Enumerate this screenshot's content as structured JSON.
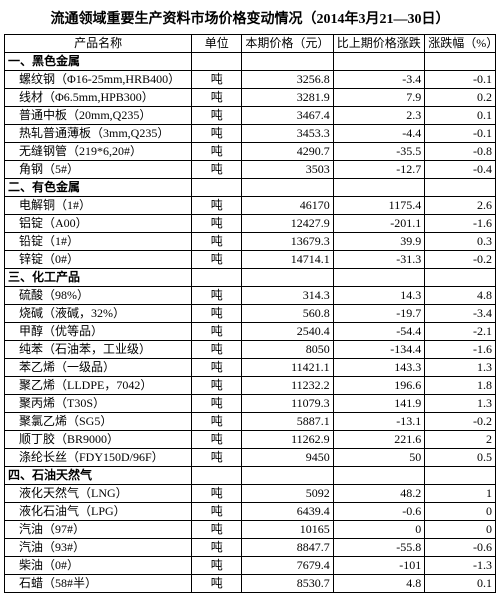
{
  "title": "流通领域重要生产资料市场价格变动情况（2014年3月21—30日）",
  "headers": {
    "name": "产品名称",
    "unit": "单位",
    "price": "本期价格（元）",
    "change": "比上期价格涨跌（元）",
    "pct": "涨跌幅（%）"
  },
  "sections": [
    {
      "label": "一、黑色金属",
      "rows": [
        {
          "name": "螺纹钢（Φ16-25mm,HRB400）",
          "unit": "吨",
          "price": "3256.8",
          "change": "-3.4",
          "pct": "-0.1"
        },
        {
          "name": "线材（Φ6.5mm,HPB300）",
          "unit": "吨",
          "price": "3281.9",
          "change": "7.9",
          "pct": "0.2"
        },
        {
          "name": "普通中板（20mm,Q235）",
          "unit": "吨",
          "price": "3467.4",
          "change": "2.3",
          "pct": "0.1"
        },
        {
          "name": "热轧普通薄板（3mm,Q235）",
          "unit": "吨",
          "price": "3453.3",
          "change": "-4.4",
          "pct": "-0.1"
        },
        {
          "name": "无缝钢管（219*6,20#）",
          "unit": "吨",
          "price": "4290.7",
          "change": "-35.5",
          "pct": "-0.8"
        },
        {
          "name": "角钢（5#）",
          "unit": "吨",
          "price": "3503",
          "change": "-12.7",
          "pct": "-0.4"
        }
      ]
    },
    {
      "label": "二、有色金属",
      "rows": [
        {
          "name": "电解铜（1#）",
          "unit": "吨",
          "price": "46170",
          "change": "1175.4",
          "pct": "2.6"
        },
        {
          "name": "铝锭（A00）",
          "unit": "吨",
          "price": "12427.9",
          "change": "-201.1",
          "pct": "-1.6"
        },
        {
          "name": "铅锭（1#）",
          "unit": "吨",
          "price": "13679.3",
          "change": "39.9",
          "pct": "0.3"
        },
        {
          "name": "锌锭（0#）",
          "unit": "吨",
          "price": "14714.1",
          "change": "-31.3",
          "pct": "-0.2"
        }
      ]
    },
    {
      "label": "三、化工产品",
      "rows": [
        {
          "name": "硫酸（98%）",
          "unit": "吨",
          "price": "314.3",
          "change": "14.3",
          "pct": "4.8"
        },
        {
          "name": "烧碱（液碱，32%）",
          "unit": "吨",
          "price": "560.8",
          "change": "-19.7",
          "pct": "-3.4"
        },
        {
          "name": "甲醇（优等品）",
          "unit": "吨",
          "price": "2540.4",
          "change": "-54.4",
          "pct": "-2.1"
        },
        {
          "name": "纯苯（石油苯，工业级）",
          "unit": "吨",
          "price": "8050",
          "change": "-134.4",
          "pct": "-1.6"
        },
        {
          "name": "苯乙烯（一级品）",
          "unit": "吨",
          "price": "11421.1",
          "change": "143.3",
          "pct": "1.3"
        },
        {
          "name": "聚乙烯（LLDPE，7042）",
          "unit": "吨",
          "price": "11232.2",
          "change": "196.6",
          "pct": "1.8"
        },
        {
          "name": "聚丙烯（T30S）",
          "unit": "吨",
          "price": "11079.3",
          "change": "141.9",
          "pct": "1.3"
        },
        {
          "name": "聚氯乙烯（SG5）",
          "unit": "吨",
          "price": "5887.1",
          "change": "-13.1",
          "pct": "-0.2"
        },
        {
          "name": "顺丁胶（BR9000）",
          "unit": "吨",
          "price": "11262.9",
          "change": "221.6",
          "pct": "2"
        },
        {
          "name": "涤纶长丝（FDY150D/96F）",
          "unit": "吨",
          "price": "9450",
          "change": "50",
          "pct": "0.5"
        }
      ]
    },
    {
      "label": "四、石油天然气",
      "rows": [
        {
          "name": "液化天然气（LNG）",
          "unit": "吨",
          "price": "5092",
          "change": "48.2",
          "pct": "1"
        },
        {
          "name": "液化石油气（LPG）",
          "unit": "吨",
          "price": "6439.4",
          "change": "-0.6",
          "pct": "0"
        },
        {
          "name": "汽油（97#）",
          "unit": "吨",
          "price": "10165",
          "change": "0",
          "pct": "0"
        },
        {
          "name": "汽油（93#）",
          "unit": "吨",
          "price": "8847.7",
          "change": "-55.8",
          "pct": "-0.6"
        },
        {
          "name": "柴油（0#）",
          "unit": "吨",
          "price": "7679.4",
          "change": "-101",
          "pct": "-1.3"
        },
        {
          "name": "石蜡（58#半）",
          "unit": "吨",
          "price": "8530.7",
          "change": "4.8",
          "pct": "0.1"
        }
      ]
    }
  ]
}
